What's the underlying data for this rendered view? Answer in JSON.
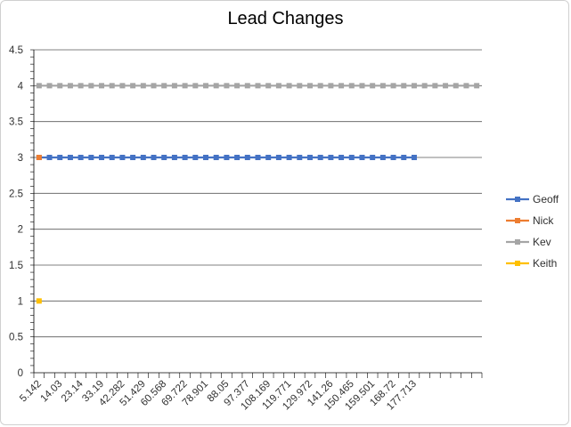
{
  "chart_data": {
    "type": "line",
    "title": "Lead Changes",
    "xlabel": "",
    "ylabel": "",
    "ylim": [
      0,
      4.5
    ],
    "y_ticks": [
      "0",
      "0.5",
      "1",
      "1.5",
      "2",
      "2.5",
      "3",
      "3.5",
      "4",
      "4.5"
    ],
    "x_tick_labels": [
      "5.142",
      "14.03",
      "23.14",
      "33.19",
      "42.282",
      "51.429",
      "60.568",
      "69.722",
      "78.901",
      "88.05",
      "97.377",
      "108.169",
      "119.771",
      "129.972",
      "141.26",
      "150.465",
      "159.501",
      "168.72",
      "177.713"
    ],
    "x_category_count": 43,
    "grid": true,
    "legend_position": "right",
    "series": [
      {
        "name": "Geoff",
        "color": "#4472c4",
        "start": 0,
        "end": 36,
        "value": 3
      },
      {
        "name": "Nick",
        "color": "#ed7d31",
        "start": 0,
        "end": 0,
        "value": 3
      },
      {
        "name": "Kev",
        "color": "#a5a5a5",
        "start": 0,
        "end": 42,
        "value": 4
      },
      {
        "name": "Keith",
        "color": "#ffc000",
        "start": 0,
        "end": 0,
        "value": 1
      }
    ]
  }
}
